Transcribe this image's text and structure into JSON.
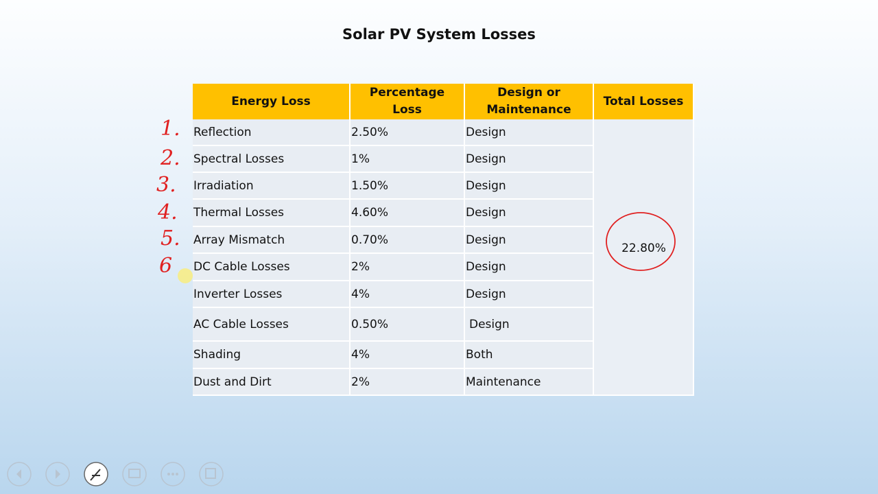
{
  "header": {
    "title": "Solar PV System Losses"
  },
  "table": {
    "columns": [
      "Energy Loss",
      "Percentage Loss",
      "Design or Maintenance",
      "Total Losses"
    ],
    "rows": [
      [
        "Reflection",
        "2.50%",
        "Design"
      ],
      [
        "Spectral Losses",
        "1%",
        "Design"
      ],
      [
        "Irradiation",
        "1.50%",
        "Design"
      ],
      [
        "Thermal Losses",
        "4.60%",
        "Design"
      ],
      [
        "Array Mismatch",
        "0.70%",
        "Design"
      ],
      [
        "DC Cable Losses",
        "2%",
        "Design"
      ],
      [
        "Inverter Losses",
        "4%",
        "Design"
      ],
      [
        "AC Cable Losses",
        "0.50%",
        "Design"
      ],
      [
        "Shading",
        "4%",
        "Both"
      ],
      [
        "Dust and Dirt",
        "2%",
        "Maintenance"
      ]
    ],
    "total": "22.80%"
  },
  "annotations": [
    "1.",
    "2.",
    "3.",
    "4.",
    "5.",
    "6"
  ]
}
